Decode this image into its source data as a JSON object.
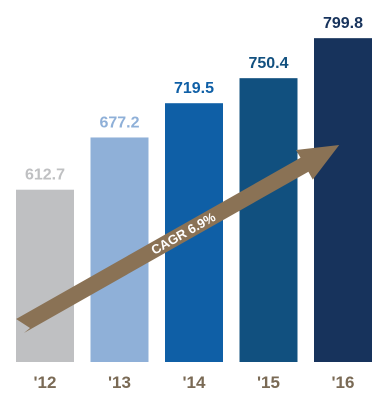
{
  "chart_data": {
    "type": "bar",
    "categories": [
      "'12",
      "'13",
      "'14",
      "'15",
      "'16"
    ],
    "values": [
      612.7,
      677.2,
      719.5,
      750.4,
      799.8
    ],
    "value_labels": [
      "612.7",
      "677.2",
      "719.5",
      "750.4",
      "799.8"
    ],
    "colors": [
      "#bfc0c2",
      "#8fb0d8",
      "#0f5fa6",
      "#11507f",
      "#17335c"
    ],
    "label_colors": [
      "#bfc0c2",
      "#8fb0d8",
      "#0f5fa6",
      "#11507f",
      "#17335c"
    ],
    "arrow_color": "#8a7255",
    "annotation": "CAGR 6.9%",
    "tick_color": "#7a6a55",
    "grid": false
  }
}
